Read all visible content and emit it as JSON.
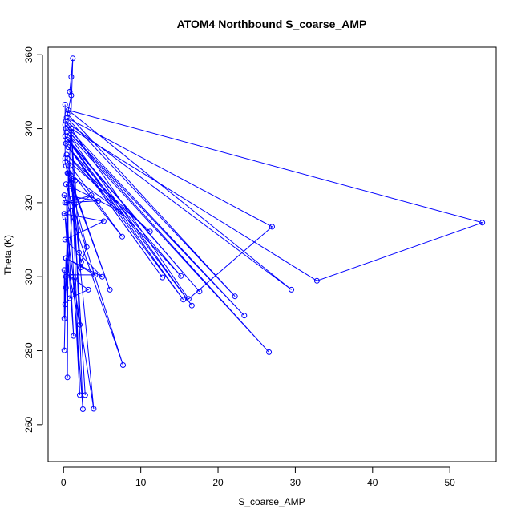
{
  "colors": {
    "series": "#0000ff",
    "axis": "#000000",
    "background": "#ffffff"
  },
  "chart_data": {
    "type": "line",
    "title": "ATOM4 Northbound S_coarse_AMP",
    "xlabel": "S_coarse_AMP",
    "ylabel": "Theta (K)",
    "xlim": [
      -2,
      56
    ],
    "ylim": [
      250,
      362
    ],
    "xticks": [
      0,
      10,
      20,
      30,
      40,
      50
    ],
    "yticks": [
      260,
      280,
      300,
      320,
      340,
      360
    ],
    "grid": false,
    "legend": "none",
    "markers": "open-circle",
    "series": [
      {
        "points": [
          [
            0.1,
            280.1
          ],
          [
            0.3,
            300.0
          ],
          [
            1.2,
            359.0
          ],
          [
            1.0,
            354.0
          ],
          [
            0.8,
            350.0
          ],
          [
            1.0,
            349.0
          ],
          [
            0.5,
            344.0
          ],
          [
            22.2,
            294.7
          ],
          [
            0.4,
            343.0
          ],
          [
            27.0,
            313.5
          ],
          [
            16.2,
            294.0
          ],
          [
            0.3,
            342.0
          ],
          [
            29.5,
            296.5
          ],
          [
            0.6,
            345.0
          ],
          [
            54.2,
            314.6
          ],
          [
            32.8,
            298.9
          ],
          [
            0.2,
            341.0
          ],
          [
            23.4,
            289.5
          ],
          [
            0.3,
            340.0
          ],
          [
            26.6,
            279.6
          ],
          [
            0.4,
            339.0
          ],
          [
            16.6,
            292.2
          ],
          [
            0.2,
            338.0
          ],
          [
            17.6,
            296.0
          ],
          [
            0.5,
            337.0
          ],
          [
            15.5,
            293.8
          ],
          [
            0.3,
            336.0
          ],
          [
            12.8,
            299.8
          ],
          [
            0.6,
            335.0
          ],
          [
            15.2,
            300.2
          ],
          [
            0.4,
            333.0
          ],
          [
            11.2,
            312.2
          ],
          [
            0.2,
            332.0
          ],
          [
            7.6,
            310.8
          ],
          [
            0.3,
            330.0
          ],
          [
            6.0,
            296.5
          ],
          [
            0.5,
            328.0
          ],
          [
            7.4,
            317.6
          ],
          [
            0.3,
            325.0
          ],
          [
            7.7,
            276.1
          ],
          [
            0.1,
            322.0
          ],
          [
            4.5,
            320.5
          ],
          [
            0.2,
            320.0
          ],
          [
            3.6,
            322.0
          ],
          [
            0.1,
            317.0
          ],
          [
            5.2,
            315.0
          ],
          [
            0.2,
            310.0
          ],
          [
            5.0,
            300.0
          ],
          [
            0.3,
            305.0
          ],
          [
            4.1,
            300.5
          ],
          [
            0.6,
            300.5
          ],
          [
            3.2,
            296.5
          ],
          [
            0.8,
            294.2
          ],
          [
            2.2,
            302.5
          ],
          [
            1.0,
            340.0
          ],
          [
            2.5,
            264.2
          ],
          [
            1.2,
            300.0
          ],
          [
            3.9,
            264.3
          ],
          [
            0.9,
            330.0
          ],
          [
            2.8,
            268.0
          ],
          [
            1.1,
            326.0
          ],
          [
            2.1,
            268.0
          ],
          [
            0.6,
            328.0
          ],
          [
            0.5,
            272.8
          ],
          [
            0.4,
            320.0
          ],
          [
            1.3,
            284.0
          ],
          [
            0.2,
            316.0
          ],
          [
            2.1,
            287.0
          ],
          [
            0.3,
            305.0
          ],
          [
            0.2,
            292.5
          ],
          [
            0.1,
            301.8
          ],
          [
            0.1,
            288.7
          ],
          [
            0.3,
            297.0
          ],
          [
            1.5,
            326.0
          ],
          [
            2.0,
            306.5
          ],
          [
            2.3,
            304.0
          ],
          [
            3.0,
            308.0
          ],
          [
            0.9,
            324.5
          ],
          [
            0.2,
            331.0
          ],
          [
            0.2,
            346.5
          ]
        ]
      }
    ]
  }
}
